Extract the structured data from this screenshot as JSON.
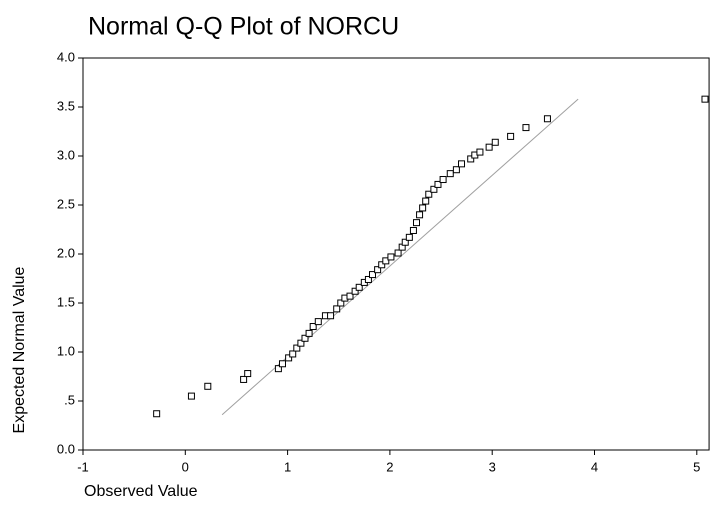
{
  "chart_data": {
    "type": "scatter",
    "title": "Normal Q-Q Plot of NORCU",
    "x_label": "Observed Value",
    "y_label": "Expected Normal Value",
    "xlim": [
      -1,
      5.12
    ],
    "ylim": [
      0,
      4
    ],
    "xticks": [
      -1,
      0,
      1,
      2,
      3,
      4,
      5
    ],
    "yticks": [
      {
        "value": 0,
        "label": "0.0"
      },
      {
        "value": 0.5,
        "label": ".5"
      },
      {
        "value": 1,
        "label": "1.0"
      },
      1.5,
      {
        "value": 2,
        "label": "2.0"
      },
      2.5,
      {
        "value": 3,
        "label": "3.0"
      },
      3.5,
      {
        "value": 4,
        "label": "4.0"
      }
    ],
    "color": "#000000",
    "reference_line": {
      "x": [
        0.36,
        3.84
      ],
      "y": [
        0.36,
        3.58
      ],
      "color": "#a0a0a0"
    },
    "x": [
      -0.28,
      0.06,
      0.22,
      0.57,
      0.61,
      0.91,
      0.95,
      1.01,
      1.05,
      1.09,
      1.13,
      1.17,
      1.21,
      1.25,
      1.3,
      1.37,
      1.42,
      1.48,
      1.52,
      1.56,
      1.61,
      1.66,
      1.7,
      1.75,
      1.79,
      1.83,
      1.88,
      1.92,
      1.96,
      2.01,
      2.08,
      2.12,
      2.15,
      2.19,
      2.23,
      2.26,
      2.29,
      2.32,
      2.35,
      2.38,
      2.43,
      2.47,
      2.52,
      2.59,
      2.65,
      2.7,
      2.79,
      2.83,
      2.88,
      2.97,
      3.03,
      3.18,
      3.33,
      3.54,
      5.08
    ],
    "values": [
      0.37,
      0.55,
      0.65,
      0.72,
      0.78,
      0.83,
      0.88,
      0.94,
      0.98,
      1.04,
      1.09,
      1.14,
      1.19,
      1.26,
      1.31,
      1.37,
      1.37,
      1.44,
      1.5,
      1.55,
      1.57,
      1.62,
      1.66,
      1.71,
      1.74,
      1.79,
      1.84,
      1.89,
      1.93,
      1.97,
      2.01,
      2.07,
      2.12,
      2.17,
      2.24,
      2.32,
      2.4,
      2.47,
      2.54,
      2.61,
      2.66,
      2.71,
      2.76,
      2.82,
      2.86,
      2.92,
      2.97,
      3.01,
      3.04,
      3.09,
      3.14,
      3.2,
      3.29,
      3.38,
      3.58
    ]
  }
}
